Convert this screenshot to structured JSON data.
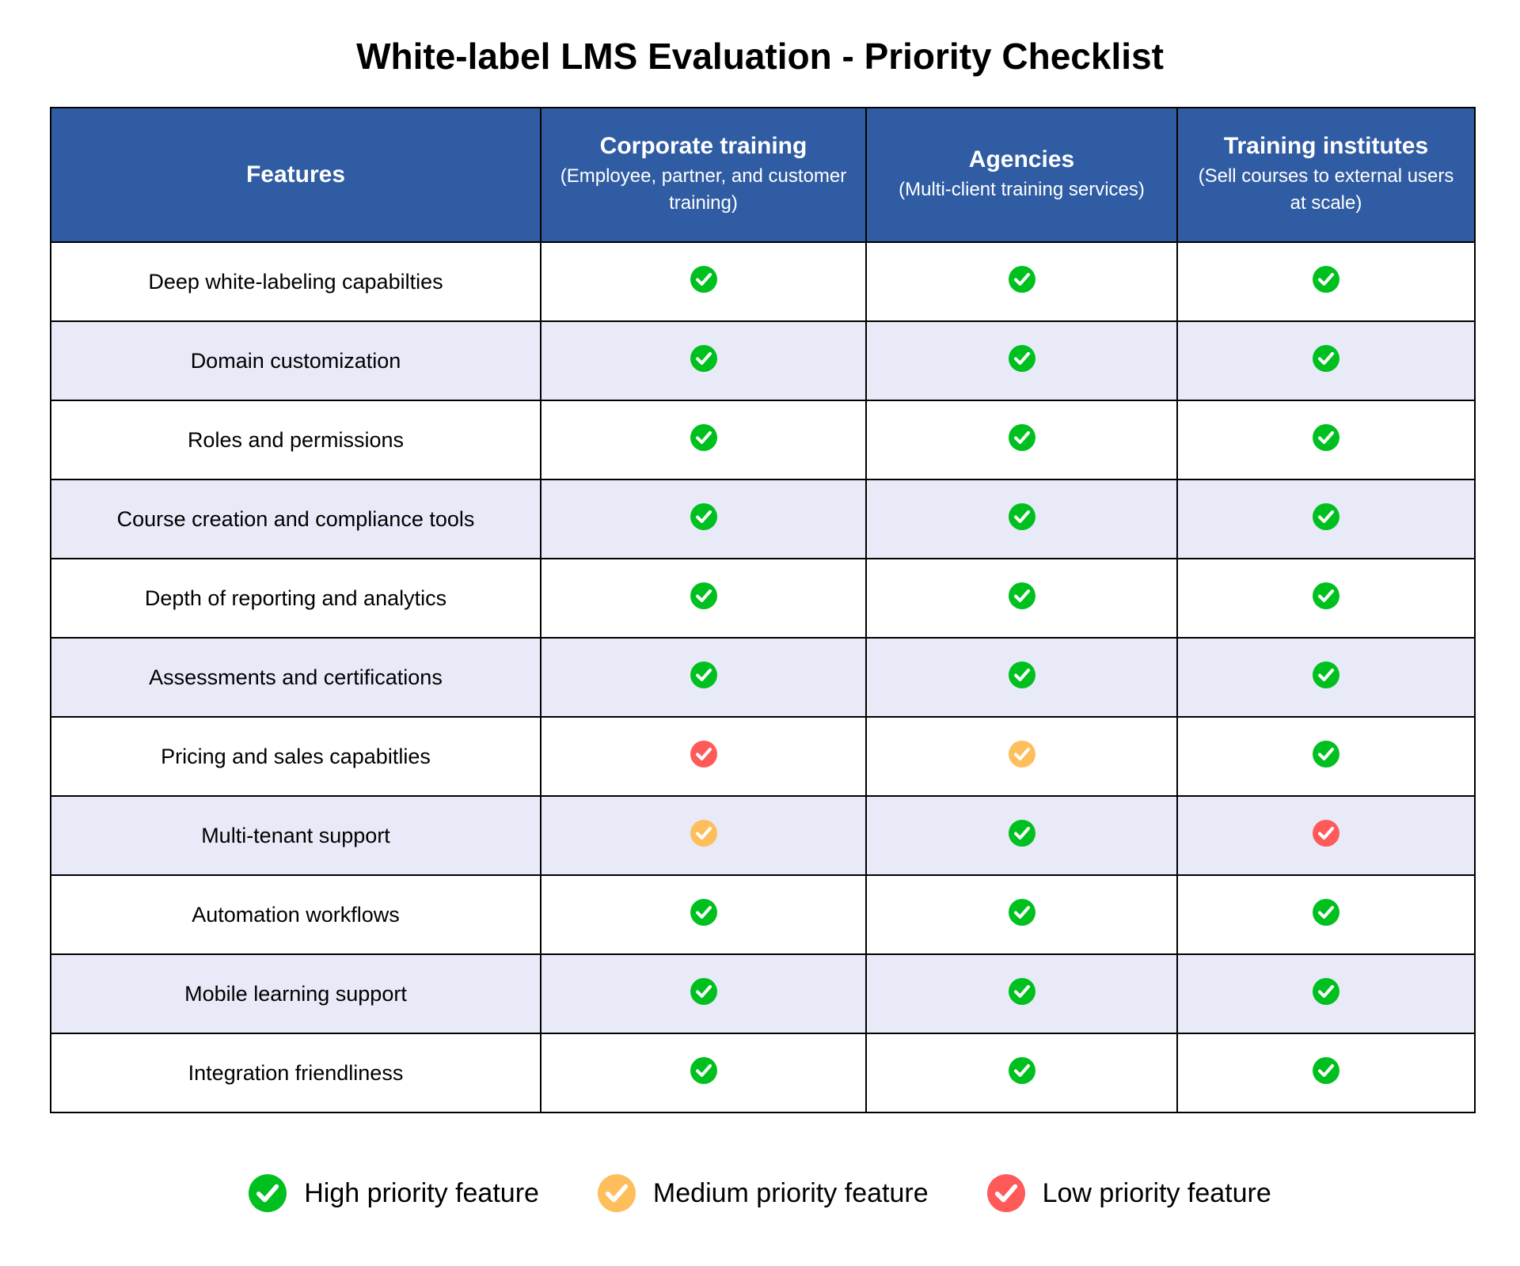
{
  "title": "White-label LMS Evaluation - Priority Checklist",
  "colors": {
    "header_bg": "#305CA3",
    "alt_row_bg": "#E8EAF8",
    "high": "#00C020",
    "medium": "#FFBE5C",
    "low": "#FF5A5A"
  },
  "columns": [
    {
      "title": "Features",
      "subtitle": ""
    },
    {
      "title": "Corporate training",
      "subtitle": "(Employee, partner, and customer training)"
    },
    {
      "title": "Agencies",
      "subtitle": "(Multi-client training services)"
    },
    {
      "title": "Training institutes",
      "subtitle": "(Sell courses to external users at scale)"
    }
  ],
  "rows": [
    {
      "feature": "Deep white-labeling capabilties",
      "values": [
        "high",
        "high",
        "high"
      ]
    },
    {
      "feature": "Domain customization",
      "values": [
        "high",
        "high",
        "high"
      ]
    },
    {
      "feature": "Roles and permissions",
      "values": [
        "high",
        "high",
        "high"
      ]
    },
    {
      "feature": "Course creation and compliance tools",
      "values": [
        "high",
        "high",
        "high"
      ]
    },
    {
      "feature": "Depth of reporting and analytics",
      "values": [
        "high",
        "high",
        "high"
      ]
    },
    {
      "feature": "Assessments and certifications",
      "values": [
        "high",
        "high",
        "high"
      ]
    },
    {
      "feature": "Pricing and sales capabitlies",
      "values": [
        "low",
        "medium",
        "high"
      ]
    },
    {
      "feature": "Multi-tenant support",
      "values": [
        "medium",
        "high",
        "low"
      ]
    },
    {
      "feature": "Automation workflows",
      "values": [
        "high",
        "high",
        "high"
      ]
    },
    {
      "feature": "Mobile learning support",
      "values": [
        "high",
        "high",
        "high"
      ]
    },
    {
      "feature": "Integration friendliness",
      "values": [
        "high",
        "high",
        "high"
      ]
    }
  ],
  "legend": [
    {
      "level": "high",
      "label": "High priority feature"
    },
    {
      "level": "medium",
      "label": "Medium priority feature"
    },
    {
      "level": "low",
      "label": "Low priority feature"
    }
  ]
}
